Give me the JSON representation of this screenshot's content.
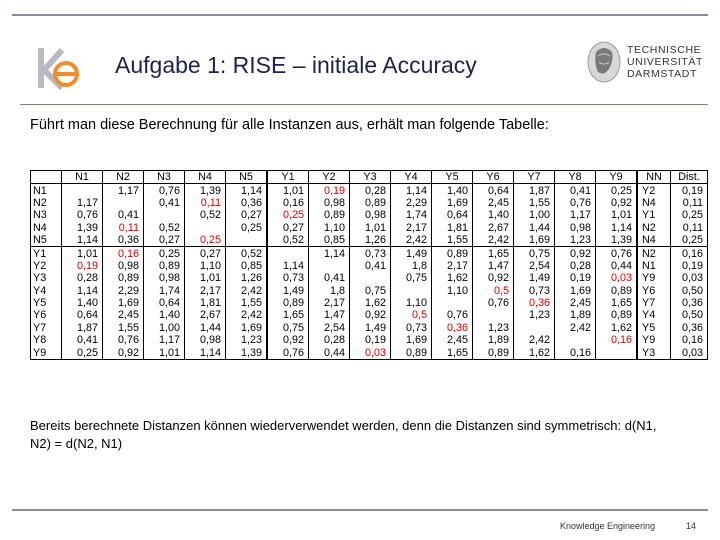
{
  "slide": {
    "title": "Aufgabe 1: RISE – initiale Accuracy",
    "intro": "Führt man diese Berechnung für alle Instanzen aus, erhält man folgende Tabelle:",
    "note": "Bereits berechnete Distanzen können wiederverwendet werden, denn die Distanzen sind symmetrisch: d(N1, N2) = d(N2, N1)",
    "footer": "Knowledge Engineering",
    "page_number": "14"
  },
  "logos": {
    "left_logo": "ke-logo",
    "university_line1": "TECHNISCHE",
    "university_line2": "UNIVERSITÄT",
    "university_line3": "DARMSTADT",
    "university_seal": "athena-seal-icon"
  },
  "table": {
    "headers": [
      "",
      "N1",
      "N2",
      "N3",
      "N4",
      "N5",
      "Y1",
      "Y2",
      "Y3",
      "Y4",
      "Y5",
      "Y6",
      "Y7",
      "Y8",
      "Y9",
      "NN",
      "Dist."
    ],
    "rows": [
      {
        "label": "N1",
        "cells": [
          "",
          "1,17",
          "0,76",
          "1,39",
          "1,14",
          "1,01",
          "0,19",
          "0,28",
          "1,14",
          "1,40",
          "0,64",
          "1,87",
          "0,41",
          "0,25"
        ],
        "red": [
          6
        ],
        "nn": "Y2",
        "dist": "0,19"
      },
      {
        "label": "N2",
        "cells": [
          "1,17",
          "",
          "0,41",
          "0,11",
          "0,36",
          "0,16",
          "0,98",
          "0,89",
          "2,29",
          "1,69",
          "2,45",
          "1,55",
          "0,76",
          "0,92"
        ],
        "red": [
          3
        ],
        "nn": "N4",
        "dist": "0,11"
      },
      {
        "label": "N3",
        "cells": [
          "0,76",
          "0,41",
          "",
          "0,52",
          "0,27",
          "0,25",
          "0,89",
          "0,98",
          "1,74",
          "0,64",
          "1,40",
          "1,00",
          "1,17",
          "1,01"
        ],
        "red": [
          5
        ],
        "nn": "Y1",
        "dist": "0,25"
      },
      {
        "label": "N4",
        "cells": [
          "1,39",
          "0,11",
          "0,52",
          "",
          "0,25",
          "0,27",
          "1,10",
          "1,01",
          "2,17",
          "1,81",
          "2,67",
          "1,44",
          "0,98",
          "1,14"
        ],
        "red": [
          1
        ],
        "nn": "N2",
        "dist": "0,11"
      },
      {
        "label": "N5",
        "cells": [
          "1,14",
          "0,36",
          "0,27",
          "0,25",
          "",
          "0,52",
          "0,85",
          "1,26",
          "2,42",
          "1,55",
          "2,42",
          "1,69",
          "1,23",
          "1,39"
        ],
        "red": [
          3
        ],
        "nn": "N4",
        "dist": "0,25"
      },
      {
        "label": "Y1",
        "cells": [
          "1,01",
          "0,16",
          "0,25",
          "0,27",
          "0,52",
          "",
          "1,14",
          "0,73",
          "1,49",
          "0,89",
          "1,65",
          "0,75",
          "0,92",
          "0,76"
        ],
        "red": [
          1
        ],
        "nn": "N2",
        "dist": "0,16"
      },
      {
        "label": "Y2",
        "cells": [
          "0,19",
          "0,98",
          "0,89",
          "1,10",
          "0,85",
          "1,14",
          "",
          "0,41",
          "1,8",
          "2,17",
          "1,47",
          "2,54",
          "0,28",
          "0,44"
        ],
        "red": [
          0
        ],
        "nn": "N1",
        "dist": "0,19"
      },
      {
        "label": "Y3",
        "cells": [
          "0,28",
          "0,89",
          "0,98",
          "1,01",
          "1,26",
          "0,73",
          "0,41",
          "",
          "0,75",
          "1,62",
          "0,92",
          "1,49",
          "0,19",
          "0,03"
        ],
        "red": [
          13
        ],
        "nn": "Y9",
        "dist": "0,03"
      },
      {
        "label": "Y4",
        "cells": [
          "1,14",
          "2,29",
          "1,74",
          "2,17",
          "2,42",
          "1,49",
          "1,8",
          "0,75",
          "",
          "1,10",
          "0,5",
          "0,73",
          "1,69",
          "0,89"
        ],
        "red": [
          10
        ],
        "nn": "Y6",
        "dist": "0,50"
      },
      {
        "label": "Y5",
        "cells": [
          "1,40",
          "1,69",
          "0,64",
          "1,81",
          "1,55",
          "0,89",
          "2,17",
          "1,62",
          "1,10",
          "",
          "0,76",
          "0,36",
          "2,45",
          "1,65"
        ],
        "red": [
          11
        ],
        "nn": "Y7",
        "dist": "0,36"
      },
      {
        "label": "Y6",
        "cells": [
          "0,64",
          "2,45",
          "1,40",
          "2,67",
          "2,42",
          "1,65",
          "1,47",
          "0,92",
          "0,5",
          "0,76",
          "",
          "1,23",
          "1,89",
          "0,89"
        ],
        "red": [
          8
        ],
        "nn": "Y4",
        "dist": "0,50"
      },
      {
        "label": "Y7",
        "cells": [
          "1,87",
          "1,55",
          "1,00",
          "1,44",
          "1,69",
          "0,75",
          "2,54",
          "1,49",
          "0,73",
          "0,36",
          "1,23",
          "",
          "2,42",
          "1,62"
        ],
        "red": [
          9
        ],
        "nn": "Y5",
        "dist": "0,36"
      },
      {
        "label": "Y8",
        "cells": [
          "0,41",
          "0,76",
          "1,17",
          "0,98",
          "1,23",
          "0,92",
          "0,28",
          "0,19",
          "1,69",
          "2,45",
          "1,89",
          "2,42",
          "",
          "0,16"
        ],
        "red": [
          13
        ],
        "nn": "Y9",
        "dist": "0,16"
      },
      {
        "label": "Y9",
        "cells": [
          "0,25",
          "0,92",
          "1,01",
          "1,14",
          "1,39",
          "0,76",
          "0,44",
          "0,03",
          "0,89",
          "1,65",
          "0,89",
          "1,62",
          "0,16",
          ""
        ],
        "red": [
          7
        ],
        "nn": "Y3",
        "dist": "0,03"
      }
    ],
    "red_color": "#e00000"
  }
}
